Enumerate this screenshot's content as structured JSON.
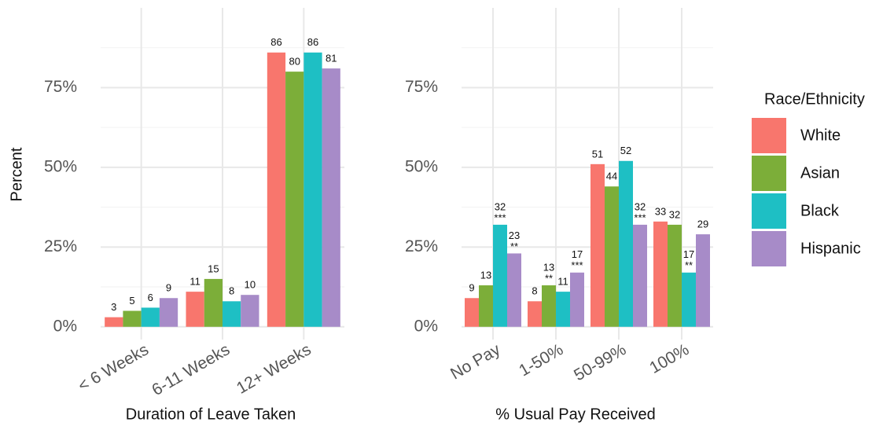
{
  "chart_data": [
    {
      "type": "bar",
      "x_label": "Duration of Leave Taken",
      "y_label": "Percent",
      "categories": [
        "< 6 Weeks",
        "6-11 Weeks",
        "12+ Weeks"
      ],
      "series": [
        {
          "name": "White",
          "color": "#f8766d",
          "values": [
            3,
            11,
            86
          ]
        },
        {
          "name": "Asian",
          "color": "#7cae39",
          "values": [
            5,
            15,
            80
          ]
        },
        {
          "name": "Black",
          "color": "#1ebfc4",
          "values": [
            6,
            8,
            86
          ]
        },
        {
          "name": "Hispanic",
          "color": "#a78bc8",
          "values": [
            9,
            10,
            81
          ]
        }
      ],
      "ylim": [
        -4,
        100
      ],
      "yticks": [
        {
          "value": 0,
          "label": "0%"
        },
        {
          "value": 25,
          "label": "25%"
        },
        {
          "value": 50,
          "label": "50%"
        },
        {
          "value": 75,
          "label": "75%"
        }
      ],
      "minor_yticks": [
        12.5,
        37.5,
        62.5,
        87.5
      ],
      "grid": true
    },
    {
      "type": "bar",
      "x_label": "% Usual Pay Received",
      "categories": [
        "No Pay",
        "1-50%",
        "50-99%",
        "100%"
      ],
      "series": [
        {
          "name": "White",
          "color": "#f8766d",
          "values": [
            9,
            8,
            51,
            33
          ],
          "stars": [
            null,
            null,
            null,
            null
          ]
        },
        {
          "name": "Asian",
          "color": "#7cae39",
          "values": [
            13,
            13,
            44,
            32
          ],
          "stars": [
            null,
            "**",
            null,
            null
          ]
        },
        {
          "name": "Black",
          "color": "#1ebfc4",
          "values": [
            32,
            11,
            52,
            17
          ],
          "stars": [
            "***",
            null,
            null,
            "**"
          ]
        },
        {
          "name": "Hispanic",
          "color": "#a78bc8",
          "values": [
            23,
            17,
            32,
            29
          ],
          "stars": [
            "**",
            "***",
            "***",
            null
          ]
        }
      ],
      "ylim": [
        -4,
        100
      ],
      "yticks": [
        {
          "value": 0,
          "label": "0%"
        },
        {
          "value": 25,
          "label": "25%"
        },
        {
          "value": 50,
          "label": "50%"
        },
        {
          "value": 75,
          "label": "75%"
        }
      ],
      "minor_yticks": [
        12.5,
        37.5,
        62.5,
        87.5
      ],
      "grid": true,
      "legend_title": "Race/Ethnicity",
      "legend_position": "right"
    }
  ]
}
